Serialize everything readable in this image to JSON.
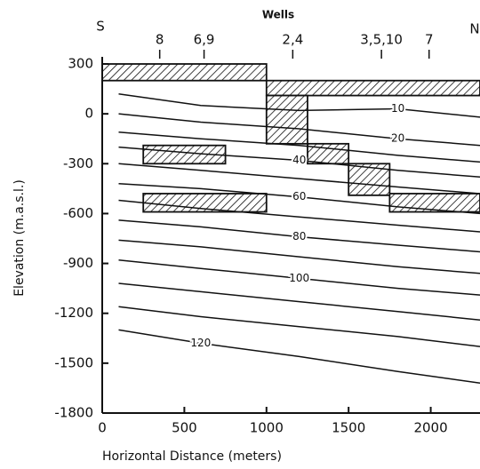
{
  "chart_data": {
    "type": "line",
    "edge_labels": [
      "S",
      "N"
    ],
    "wells": {
      "title": "Wells",
      "labels": [
        "8",
        "6,9",
        "2,4",
        "3,5,10",
        "7"
      ],
      "x": [
        350,
        620,
        1160,
        1700,
        1990
      ]
    },
    "xlabel": "Horizontal Distance (meters)",
    "ylabel": "Elevation (m.a.s.l.)",
    "xlim": [
      0,
      2300
    ],
    "ylim": [
      -1800,
      300
    ],
    "xticks": [
      0,
      500,
      1000,
      1500,
      2000
    ],
    "yticks": [
      300,
      0,
      -300,
      -600,
      -900,
      -1200,
      -1500,
      -1800
    ],
    "color": "#111111",
    "intervals": [
      {
        "x": [
          0,
          1000
        ],
        "y": [
          200,
          300
        ]
      },
      {
        "x": [
          1000,
          2300
        ],
        "y": [
          110,
          200
        ]
      },
      {
        "x": [
          1000,
          1250
        ],
        "y": [
          -180,
          110
        ]
      },
      {
        "x": [
          250,
          750
        ],
        "y": [
          -300,
          -190
        ]
      },
      {
        "x": [
          1250,
          1500
        ],
        "y": [
          -300,
          -180
        ]
      },
      {
        "x": [
          1500,
          1750
        ],
        "y": [
          -490,
          -300
        ]
      },
      {
        "x": [
          1750,
          2300
        ],
        "y": [
          -590,
          -480
        ]
      },
      {
        "x": [
          250,
          1000
        ],
        "y": [
          -590,
          -480
        ]
      }
    ],
    "series": [
      {
        "name": "10",
        "x": [
          100,
          600,
          1200,
          1800,
          2300
        ],
        "values": [
          120,
          50,
          20,
          30,
          -20
        ]
      },
      {
        "name": "20",
        "x": [
          100,
          600,
          1200,
          1800,
          2300
        ],
        "values": [
          0,
          -50,
          -90,
          -150,
          -190
        ]
      },
      {
        "x": [
          100,
          600,
          1200,
          1800,
          2300
        ],
        "values": [
          -110,
          -150,
          -190,
          -250,
          -290
        ]
      },
      {
        "name": "40",
        "x": [
          100,
          600,
          1200,
          1800,
          2300
        ],
        "values": [
          -200,
          -240,
          -280,
          -340,
          -380
        ]
      },
      {
        "x": [
          100,
          600,
          1200,
          1800,
          2300
        ],
        "values": [
          -300,
          -340,
          -390,
          -440,
          -480
        ]
      },
      {
        "name": "60",
        "x": [
          100,
          600,
          1200,
          1800,
          2300
        ],
        "values": [
          -420,
          -450,
          -500,
          -560,
          -600
        ]
      },
      {
        "x": [
          100,
          600,
          1200,
          1800,
          2300
        ],
        "values": [
          -520,
          -570,
          -620,
          -670,
          -710
        ]
      },
      {
        "name": "80",
        "x": [
          100,
          600,
          1200,
          1800,
          2300
        ],
        "values": [
          -640,
          -680,
          -740,
          -790,
          -830
        ]
      },
      {
        "x": [
          100,
          600,
          1200,
          1800,
          2300
        ],
        "values": [
          -760,
          -800,
          -860,
          -920,
          -960
        ]
      },
      {
        "name": "100",
        "x": [
          100,
          600,
          1200,
          1800,
          2300
        ],
        "values": [
          -880,
          -930,
          -990,
          -1050,
          -1090
        ]
      },
      {
        "x": [
          100,
          600,
          1200,
          1800,
          2300
        ],
        "values": [
          -1020,
          -1070,
          -1130,
          -1190,
          -1240
        ]
      },
      {
        "x": [
          100,
          600,
          1200,
          1800,
          2300
        ],
        "values": [
          -1160,
          -1220,
          -1280,
          -1340,
          -1400
        ]
      },
      {
        "name": "120",
        "x": [
          100,
          600,
          1200,
          1800,
          2300
        ],
        "values": [
          -1300,
          -1380,
          -1460,
          -1550,
          -1620
        ]
      }
    ]
  }
}
